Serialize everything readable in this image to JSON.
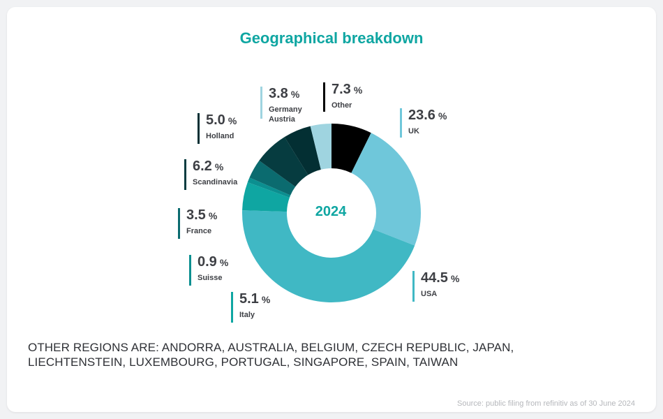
{
  "header": {
    "title": "Geographical breakdown"
  },
  "center_label": "2024",
  "percent_sign": "%",
  "note": "OTHER REGIONS ARE: ANDORRA, AUSTRALIA, BELGIUM, CZECH REPUBLIC, JAPAN, LIECHTENSTEIN, LUXEMBOURG, PORTUGAL, SINGAPORE, SPAIN, TAIWAN",
  "source": "Source: public filing from refinitiv as of 30 June 2024",
  "chart_data": {
    "type": "pie",
    "title": "Geographical breakdown",
    "center_text": "2024",
    "slices": [
      {
        "label": "Other",
        "value": 7.3,
        "color": "#000000"
      },
      {
        "label": "UK",
        "value": 23.6,
        "color": "#6fc7da"
      },
      {
        "label": "USA",
        "value": 44.5,
        "color": "#40b8c4"
      },
      {
        "label": "Italy",
        "value": 5.1,
        "color": "#0fa6a2"
      },
      {
        "label": "Suisse",
        "value": 0.9,
        "color": "#0b8f90"
      },
      {
        "label": "France",
        "value": 3.5,
        "color": "#0b6b6f"
      },
      {
        "label": "Scandinavia",
        "value": 6.2,
        "color": "#063c40"
      },
      {
        "label": "Holland",
        "value": 5.0,
        "color": "#032f33"
      },
      {
        "label": "Germany\nAustria",
        "value": 3.8,
        "color": "#9fd4e0"
      }
    ]
  }
}
